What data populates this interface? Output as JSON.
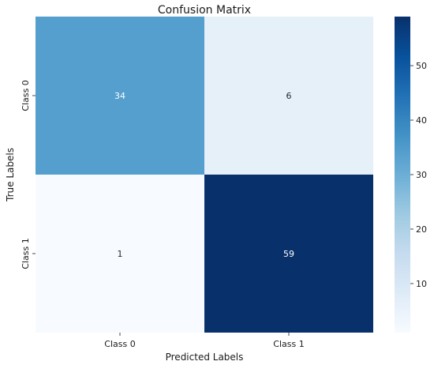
{
  "chart_data": {
    "type": "heatmap",
    "title": "Confusion Matrix",
    "xlabel": "Predicted Labels",
    "ylabel": "True Labels",
    "x_categories": [
      "Class 0",
      "Class 1"
    ],
    "y_categories": [
      "Class 0",
      "Class 1"
    ],
    "values": [
      [
        34,
        6
      ],
      [
        1,
        59
      ]
    ],
    "colormap": "Blues",
    "colorbar": {
      "min": 1,
      "max": 59,
      "ticks": [
        10,
        20,
        30,
        40,
        50
      ],
      "tick_labels": [
        "10",
        "20",
        "30",
        "40",
        "50"
      ]
    },
    "colors": {
      "low": "#f7fbff",
      "high": "#08306b",
      "annot_dark": "#262626",
      "annot_light": "#ffffff"
    }
  }
}
